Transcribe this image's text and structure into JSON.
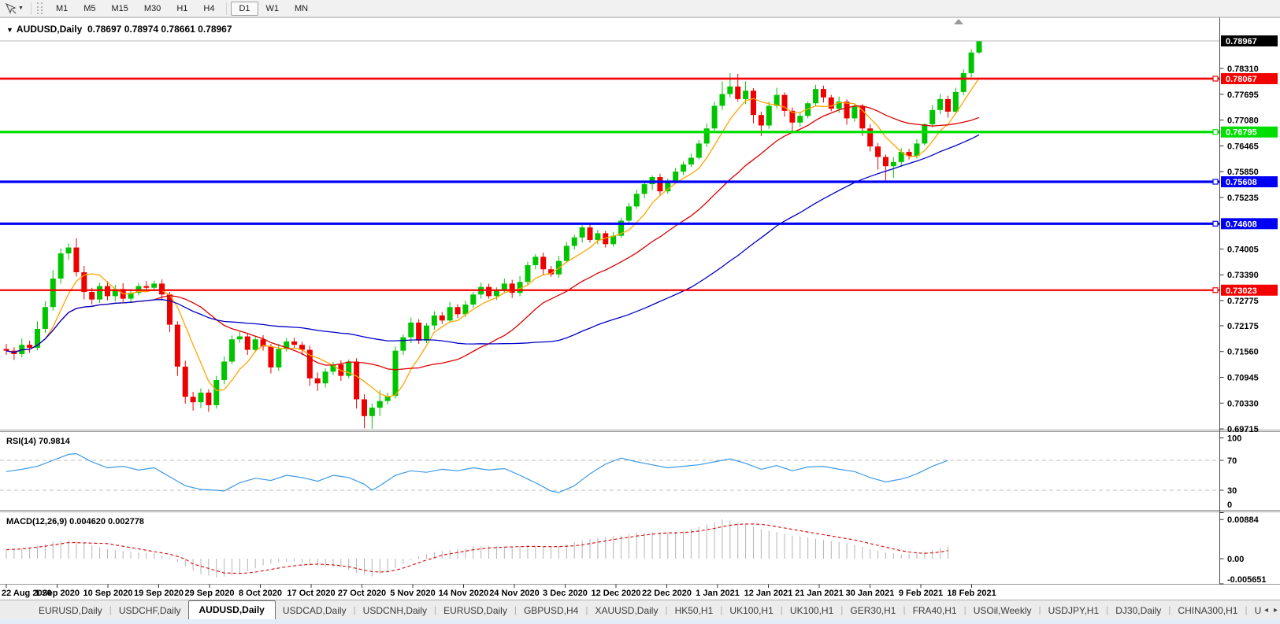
{
  "toolbar": {
    "timeframes": [
      "M1",
      "M5",
      "M15",
      "M30",
      "H1",
      "H4",
      "D1",
      "W1",
      "MN"
    ],
    "active_timeframe": "D1",
    "cursor_tool_icon": "crosshair-cursor",
    "dropdown_caret": "▼"
  },
  "chart": {
    "title": {
      "symbol": "AUDUSD,Daily",
      "open": "0.78697",
      "high": "0.78974",
      "low": "0.78661",
      "close": "0.78967"
    }
  },
  "colors": {
    "bull": "#00C400",
    "bear": "#EC0000",
    "ma_fast": "#FFA500",
    "ma_mid": "#DC0000",
    "ma_slow": "#0000C8",
    "rsi_line": "#3D9AE8",
    "macd_bar": "#B4B4B4",
    "macd_signal": "#E00000",
    "level_red": "#F40000",
    "level_green": "#00DF00",
    "level_blue": "#0000F5",
    "current_line": "#BABABA",
    "current_badge": "#000000",
    "axis_line": "#4a4a4a",
    "panel_border": "#9a9a9a"
  },
  "chart_data": {
    "type": "candlestick",
    "symbol": "AUDUSD",
    "timeframe": "Daily",
    "last_ohlc": {
      "open": 0.78697,
      "high": 0.78974,
      "low": 0.78661,
      "close": 0.78967
    },
    "x_labels": [
      "22 Aug 2020",
      "1 Sep 2020",
      "10 Sep 2020",
      "19 Sep 2020",
      "29 Sep 2020",
      "8 Oct 2020",
      "17 Oct 2020",
      "27 Oct 2020",
      "5 Nov 2020",
      "14 Nov 2020",
      "24 Nov 2020",
      "3 Dec 2020",
      "12 Dec 2020",
      "22 Dec 2020",
      "1 Jan 2021",
      "12 Jan 2021",
      "21 Jan 2021",
      "30 Jan 2021",
      "9 Feb 2021",
      "18 Feb 2021"
    ],
    "price_ticks": [
      "0.78310",
      "0.77695",
      "0.77080",
      "0.76465",
      "0.75850",
      "0.75235",
      "0.74005",
      "0.73390",
      "0.72775",
      "0.72175",
      "0.71560",
      "0.70945",
      "0.70330",
      "0.69715"
    ],
    "current_price": {
      "value": 0.78967,
      "label": "0.78967"
    },
    "horizontal_levels": [
      {
        "value": 0.78067,
        "label": "0.78067",
        "color_key": "level_red",
        "width": 2.6
      },
      {
        "value": 0.76795,
        "label": "0.76795",
        "color_key": "level_green",
        "width": 3.2
      },
      {
        "value": 0.75608,
        "label": "0.75608",
        "color_key": "level_blue",
        "width": 3.2
      },
      {
        "value": 0.74608,
        "label": "0.74608",
        "color_key": "level_blue",
        "width": 3.2
      },
      {
        "value": 0.73023,
        "label": "0.73023",
        "color_key": "level_red",
        "width": 2.2
      }
    ],
    "moving_averages": [
      {
        "name": "fast",
        "period": 6,
        "color_key": "ma_fast"
      },
      {
        "name": "mid",
        "period": 20,
        "color_key": "ma_mid"
      },
      {
        "name": "slow",
        "period": 50,
        "color_key": "ma_slow"
      }
    ],
    "candles": {
      "first_open": 0.7162,
      "closes": [
        0.7158,
        0.715,
        0.7172,
        0.7165,
        0.721,
        0.7262,
        0.733,
        0.739,
        0.7404,
        0.7345,
        0.7298,
        0.728,
        0.7312,
        0.7288,
        0.7305,
        0.7282,
        0.7296,
        0.7312,
        0.7308,
        0.7318,
        0.7292,
        0.722,
        0.712,
        0.7048,
        0.7035,
        0.7058,
        0.7028,
        0.7088,
        0.7132,
        0.7185,
        0.7192,
        0.716,
        0.7185,
        0.7168,
        0.7118,
        0.7162,
        0.718,
        0.7172,
        0.716,
        0.7092,
        0.708,
        0.7108,
        0.7125,
        0.7098,
        0.7132,
        0.7042,
        0.7002,
        0.7022,
        0.7038,
        0.705,
        0.7158,
        0.719,
        0.7225,
        0.7182,
        0.7218,
        0.7242,
        0.723,
        0.7262,
        0.7245,
        0.7268,
        0.7292,
        0.731,
        0.7288,
        0.7302,
        0.7318,
        0.7296,
        0.7322,
        0.7362,
        0.7382,
        0.7352,
        0.734,
        0.7372,
        0.7408,
        0.7428,
        0.7452,
        0.7422,
        0.7438,
        0.7412,
        0.7432,
        0.7468,
        0.7502,
        0.7532,
        0.7555,
        0.7572,
        0.7538,
        0.7562,
        0.7585,
        0.7602,
        0.7618,
        0.7652,
        0.7688,
        0.7742,
        0.777,
        0.7788,
        0.7758,
        0.7778,
        0.772,
        0.7695,
        0.7742,
        0.7768,
        0.773,
        0.7702,
        0.7718,
        0.7748,
        0.7782,
        0.7762,
        0.7735,
        0.7752,
        0.7712,
        0.774,
        0.7688,
        0.7645,
        0.762,
        0.7598,
        0.7608,
        0.7632,
        0.7622,
        0.7652,
        0.7698,
        0.7732,
        0.7758,
        0.7728,
        0.7775,
        0.782,
        0.7869,
        0.78967
      ],
      "wick_up_1e4": [
        12,
        8,
        15,
        10,
        18,
        14,
        20,
        12,
        10,
        22,
        15,
        10,
        8,
        12,
        10,
        14,
        9,
        8,
        12,
        7,
        10,
        6,
        8,
        14,
        12,
        10,
        8,
        10,
        12,
        9,
        11,
        8,
        7,
        10,
        6,
        12,
        8,
        9,
        7,
        10,
        14,
        8,
        6,
        10,
        5,
        8,
        12,
        10,
        25,
        8,
        10,
        7,
        12,
        8,
        6,
        10,
        8,
        12,
        7,
        9,
        6,
        10,
        8,
        7,
        12,
        9,
        14,
        8,
        6,
        10,
        8,
        12,
        9,
        7,
        5,
        10,
        8,
        6,
        9,
        7,
        8,
        10,
        6,
        4,
        8,
        6,
        9,
        7,
        10,
        8,
        12,
        10,
        30,
        32,
        30,
        22,
        6,
        8,
        10,
        17,
        6,
        8,
        9,
        4,
        10,
        8,
        6,
        12,
        5,
        8,
        6,
        10,
        8,
        6,
        12,
        9,
        7,
        10,
        2,
        12,
        12,
        8,
        10,
        9,
        8,
        1
      ],
      "wick_dn_1e4": [
        10,
        14,
        8,
        12,
        6,
        10,
        8,
        12,
        15,
        10,
        18,
        12,
        8,
        10,
        12,
        8,
        10,
        6,
        9,
        8,
        14,
        18,
        22,
        16,
        20,
        14,
        16,
        8,
        10,
        6,
        8,
        12,
        6,
        10,
        14,
        8,
        6,
        9,
        12,
        18,
        18,
        10,
        8,
        12,
        6,
        22,
        29,
        30,
        20,
        8,
        6,
        10,
        14,
        8,
        6,
        10,
        8,
        6,
        9,
        7,
        8,
        10,
        6,
        9,
        7,
        12,
        8,
        6,
        10,
        14,
        6,
        8,
        5,
        9,
        12,
        6,
        10,
        8,
        6,
        5,
        8,
        6,
        10,
        14,
        8,
        6,
        5,
        8,
        6,
        4,
        8,
        6,
        10,
        8,
        6,
        12,
        20,
        25,
        8,
        6,
        14,
        25,
        10,
        6,
        8,
        12,
        6,
        10,
        15,
        8,
        18,
        12,
        30,
        34,
        28,
        12,
        8,
        6,
        5,
        8,
        10,
        14,
        6,
        8,
        10,
        3
      ]
    },
    "rsi": {
      "label_name": "RSI(14)",
      "label_value": "70.9814",
      "levels": [
        70,
        30
      ],
      "range": [
        0,
        100
      ],
      "axis_ticks": [
        {
          "label": "100",
          "v": 100
        },
        {
          "label": "70",
          "v": 70
        },
        {
          "label": "30",
          "v": 30
        },
        {
          "label": "0",
          "v": 0
        }
      ],
      "drawn_to_index": 121,
      "values": [
        55,
        56.5,
        58,
        60,
        62,
        66,
        70,
        74,
        78,
        79,
        73.5,
        68,
        64,
        60,
        61,
        62,
        59.5,
        57,
        58.5,
        60,
        54,
        48,
        42,
        36,
        33.5,
        31,
        30.5,
        30,
        29,
        34.5,
        40,
        43,
        46,
        44.5,
        43,
        46.5,
        50,
        48.5,
        47,
        44.5,
        42,
        46,
        50,
        48.5,
        47,
        42.5,
        38,
        30,
        36,
        43,
        50,
        53,
        56,
        55,
        54,
        56,
        58,
        57,
        56,
        58,
        60,
        58.5,
        57,
        58,
        59,
        54.5,
        50,
        45,
        40,
        34.5,
        29,
        27,
        31.5,
        36,
        44,
        52,
        58.5,
        65,
        69,
        73,
        70.5,
        68,
        66,
        64,
        62,
        60,
        61,
        62,
        63,
        64,
        66,
        68,
        70,
        72,
        69,
        66,
        62,
        58,
        60.5,
        63,
        59.5,
        56,
        58.5,
        61,
        61.5,
        62,
        60,
        58,
        56.5,
        55,
        51,
        47,
        44,
        41,
        43,
        45,
        48,
        52,
        57,
        62,
        66,
        70,
        70,
        70,
        70.5,
        71
      ]
    },
    "macd": {
      "label_name": "MACD(12,26,9)",
      "label_value_main": "0.004620",
      "label_value_signal": "0.002778",
      "axis_ticks": [
        {
          "label": "0.00884",
          "v": 88
        },
        {
          "label": "0.00",
          "v": 0
        },
        {
          "label": "-0.005651",
          "v": -56.51
        }
      ],
      "drawn_to_index": 121,
      "histogram_1e4": [
        18,
        20,
        23,
        25,
        29,
        33,
        38,
        40,
        42,
        39,
        35,
        30,
        26,
        22,
        19,
        17,
        15,
        14,
        13,
        12,
        7,
        2,
        -8,
        -18,
        -27,
        -35,
        -38,
        -42,
        -40,
        -38,
        -33,
        -28,
        -21,
        -15,
        -11,
        -8,
        -7,
        -6,
        -10,
        -15,
        -16,
        -18,
        -19,
        -20,
        -26,
        -32,
        -36,
        -40,
        -35,
        -30,
        -21,
        -12,
        -3,
        5,
        10,
        15,
        17,
        20,
        22,
        23,
        28,
        28,
        28,
        28,
        27,
        26,
        28,
        30,
        28,
        26,
        27,
        28,
        33,
        38,
        41,
        45,
        46,
        48,
        50,
        52,
        55,
        58,
        59,
        60,
        59,
        58,
        60,
        62,
        67,
        72,
        77,
        82,
        88,
        86,
        82,
        78,
        72,
        66,
        63,
        60,
        56,
        52,
        50,
        48,
        45,
        42,
        40,
        38,
        35,
        32,
        27,
        22,
        18,
        14,
        12,
        10,
        11,
        12,
        16,
        20,
        24,
        28,
        32,
        36,
        41,
        46
      ],
      "signal_1e4": [
        20,
        21,
        22,
        24,
        26,
        28,
        31,
        33.5,
        36,
        36,
        35.5,
        35,
        34.5,
        34,
        31,
        28,
        25,
        22,
        19,
        16,
        13,
        10,
        5,
        -1,
        -12,
        -17,
        -22,
        -27,
        -32,
        -32.5,
        -33,
        -32,
        -30,
        -27,
        -24,
        -21,
        -18,
        -16,
        -14,
        -13,
        -12,
        -13,
        -14,
        -16,
        -18,
        -22,
        -26,
        -29,
        -30,
        -29,
        -26,
        -21,
        -15,
        -9,
        -3,
        2,
        8,
        11,
        14,
        17,
        20,
        22,
        24,
        25,
        26,
        26.5,
        27,
        27.5,
        27.5,
        27,
        27,
        27,
        28,
        29,
        31,
        34,
        37,
        40,
        43,
        46,
        48,
        51,
        53,
        55,
        57,
        58,
        58,
        59,
        60,
        62,
        65,
        68,
        72,
        75,
        77,
        78,
        78,
        77,
        75,
        72,
        69,
        66,
        63,
        60,
        57,
        54,
        51,
        48,
        45,
        42,
        38,
        34,
        30,
        26,
        22,
        18,
        15,
        13,
        12,
        13,
        15,
        18,
        21,
        24,
        26,
        28
      ]
    }
  },
  "tabbar": {
    "tabs": [
      "EURUSD,Daily",
      "USDCHF,Daily",
      "AUDUSD,Daily",
      "USDCAD,Daily",
      "USDCNH,Daily",
      "EURUSD,Daily",
      "GBPUSD,H4",
      "XAUUSD,Daily",
      "HK50,H1",
      "UK100,H1",
      "UK100,H1",
      "GER30,H1",
      "FRA40,H1",
      "USOil,Weekly",
      "USDJPY,H1",
      "DJ30,Daily",
      "CHINA300,H1",
      "U"
    ],
    "active_index": 2,
    "scroll_left": "◂",
    "scroll_right": "▸"
  }
}
